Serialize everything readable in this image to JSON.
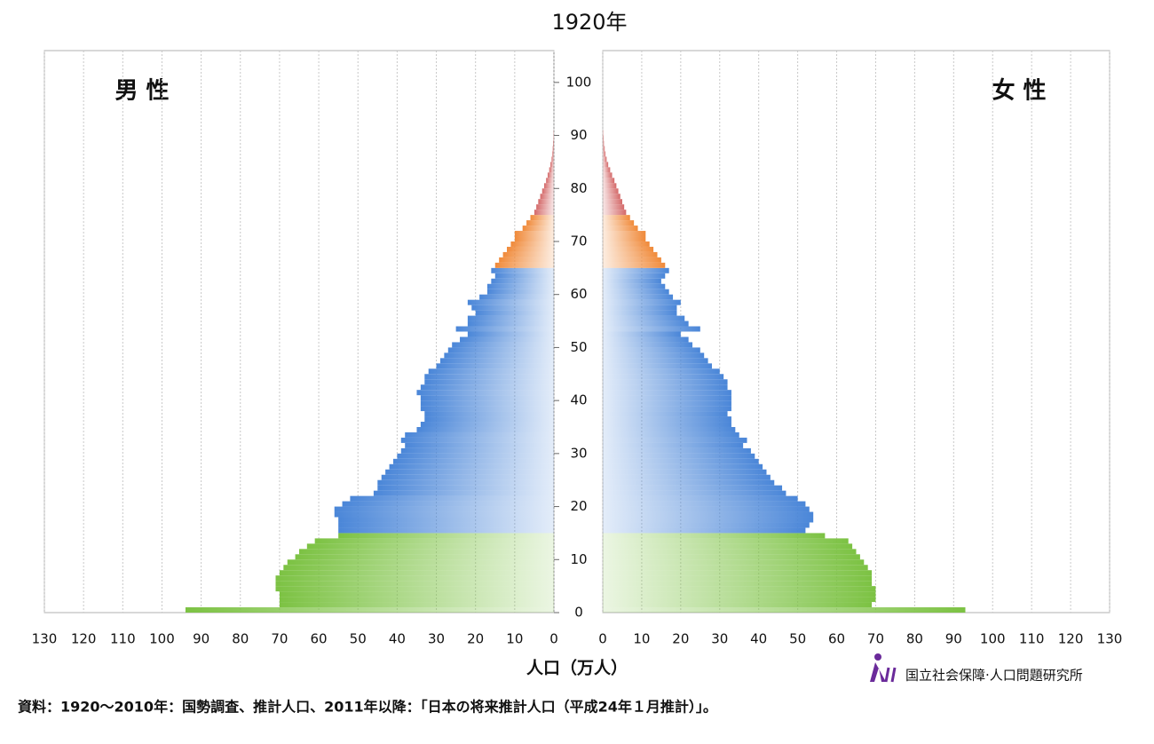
{
  "chart_data": {
    "type": "pyramid",
    "title": "1920年",
    "y": [
      0,
      1,
      2,
      3,
      4,
      5,
      6,
      7,
      8,
      9,
      10,
      11,
      12,
      13,
      14,
      15,
      16,
      17,
      18,
      19,
      20,
      21,
      22,
      23,
      24,
      25,
      26,
      27,
      28,
      29,
      30,
      31,
      32,
      33,
      34,
      35,
      36,
      37,
      38,
      39,
      40,
      41,
      42,
      43,
      44,
      45,
      46,
      47,
      48,
      49,
      50,
      51,
      52,
      53,
      54,
      55,
      56,
      57,
      58,
      59,
      60,
      61,
      62,
      63,
      64,
      65,
      66,
      67,
      68,
      69,
      70,
      71,
      72,
      73,
      74,
      75,
      76,
      77,
      78,
      79,
      80,
      81,
      82,
      83,
      84,
      85,
      86,
      87,
      88,
      89,
      90
    ],
    "ylim": [
      0,
      106
    ],
    "yticks": [
      0,
      10,
      20,
      30,
      40,
      50,
      60,
      70,
      80,
      90,
      100
    ],
    "xlim": [
      0,
      130
    ],
    "xticks": [
      0,
      10,
      20,
      30,
      40,
      50,
      60,
      70,
      80,
      90,
      100,
      110,
      120,
      130
    ],
    "x_label": "人口（万人）",
    "series": [
      {
        "name": "男 性",
        "values": [
          94,
          70,
          70,
          70,
          71,
          71,
          71,
          70,
          69,
          68,
          66,
          65,
          63,
          61,
          55,
          55,
          55,
          55,
          56,
          56,
          54,
          52,
          46,
          45,
          45,
          44,
          43,
          42,
          41,
          40,
          39,
          38,
          39,
          38,
          35,
          34,
          33,
          33,
          34,
          34,
          34,
          35,
          34,
          33,
          33,
          32,
          30,
          29,
          28,
          27,
          26,
          24,
          22,
          25,
          22,
          22,
          20,
          21,
          22,
          19,
          17,
          17,
          16,
          15,
          16,
          15,
          14,
          13,
          12,
          11,
          10,
          10,
          8,
          7,
          6,
          5,
          4.5,
          4,
          3.5,
          3,
          2.5,
          2,
          1.6,
          1.2,
          0.9,
          0.6,
          0.4,
          0.3,
          0.2,
          0.1,
          0.05
        ]
      },
      {
        "name": "女 性",
        "values": [
          93,
          69,
          70,
          70,
          70,
          69,
          69,
          69,
          68,
          67,
          66,
          65,
          64,
          63,
          57,
          52,
          53,
          54,
          54,
          53,
          52,
          50,
          47,
          46,
          44,
          43,
          42,
          41,
          40,
          39,
          38,
          36,
          37,
          35,
          34,
          33,
          33,
          32,
          33,
          33,
          33,
          33,
          32,
          32,
          31,
          30,
          28,
          27,
          26,
          25,
          23,
          22,
          20,
          25,
          22,
          21,
          19,
          19,
          20,
          18,
          17,
          16,
          15,
          16,
          17,
          16,
          15,
          14,
          13,
          12,
          11,
          11,
          9,
          8,
          7,
          6,
          5.5,
          5,
          4.5,
          4,
          3.5,
          3,
          2.4,
          1.9,
          1.4,
          1,
          0.7,
          0.5,
          0.3,
          0.2,
          0.1
        ]
      }
    ],
    "age_group_colors": [
      "#7cc243",
      "#4a86d8",
      "#f08a3a",
      "#d46a6a"
    ],
    "grid": true
  },
  "logo": "国立社会保障·人口問題研究所",
  "source": "資料：1920～2010年：国勢調査、推計人口、2011年以降：「日本の将来推計人口（平成24年１月推計）」。"
}
